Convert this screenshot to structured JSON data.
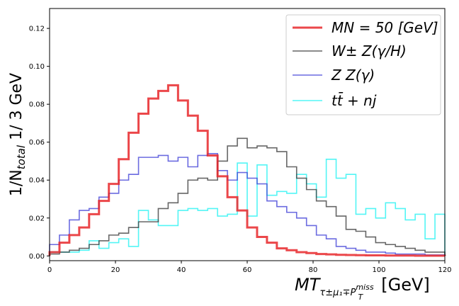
{
  "chart_data": {
    "type": "histogram-step",
    "xlabel_main": "MT",
    "xlabel_sub": "τ±μ1∓PTmiss",
    "xlabel_unit": "[GeV]",
    "ylabel": "1/Ntotal 1/ 3 GeV",
    "xlim": [
      0,
      120
    ],
    "ylim": [
      0,
      0.13
    ],
    "xticks": [
      0,
      20,
      40,
      60,
      80,
      100,
      120
    ],
    "yticks": [
      0.0,
      0.02,
      0.04,
      0.06,
      0.08,
      0.1,
      0.12
    ],
    "xtick_labels": [
      "0",
      "20",
      "40",
      "60",
      "80",
      "100",
      "120"
    ],
    "ytick_labels": [
      "0.00",
      "0.02",
      "0.04",
      "0.06",
      "0.08",
      "0.10",
      "0.12"
    ],
    "bin_edges": [
      0,
      3,
      6,
      9,
      12,
      15,
      18,
      21,
      24,
      27,
      30,
      33,
      36,
      39,
      42,
      45,
      48,
      51,
      54,
      57,
      60,
      63,
      66,
      69,
      72,
      75,
      78,
      81,
      84,
      87,
      90,
      93,
      96,
      99,
      102,
      105,
      108,
      111,
      114,
      117,
      120
    ],
    "legend_position": "upper-right",
    "series": [
      {
        "name": "M_N = 50 [GeV]",
        "legend_label": "MN = 50 [GeV]",
        "color": "#e8272a",
        "values": [
          0.002,
          0.007,
          0.011,
          0.015,
          0.022,
          0.029,
          0.038,
          0.051,
          0.065,
          0.075,
          0.083,
          0.087,
          0.09,
          0.082,
          0.074,
          0.066,
          0.053,
          0.042,
          0.031,
          0.024,
          0.015,
          0.01,
          0.007,
          0.004,
          0.003,
          0.002,
          0.0015,
          0.001,
          0.0008,
          0.0006,
          0.0005,
          0.0004,
          0.0003,
          0.0003,
          0.0002,
          0.0002,
          0.0002,
          0.0001,
          0.0001,
          0.0001
        ]
      },
      {
        "name": "W± Z(γ/H)",
        "legend_label": "W± Z(γ/H)",
        "color": "#333333",
        "values": [
          0.001,
          0.002,
          0.003,
          0.004,
          0.006,
          0.008,
          0.011,
          0.012,
          0.015,
          0.018,
          0.018,
          0.025,
          0.028,
          0.033,
          0.04,
          0.041,
          0.04,
          0.05,
          0.058,
          0.062,
          0.057,
          0.058,
          0.057,
          0.055,
          0.047,
          0.041,
          0.035,
          0.029,
          0.026,
          0.021,
          0.014,
          0.013,
          0.01,
          0.007,
          0.006,
          0.005,
          0.004,
          0.003,
          0.002,
          0.002
        ]
      },
      {
        "name": "Z Z(γ)",
        "legend_label": "Z Z(γ)",
        "color": "#3a3ad6",
        "values": [
          0.006,
          0.011,
          0.019,
          0.024,
          0.025,
          0.031,
          0.033,
          0.04,
          0.043,
          0.052,
          0.052,
          0.053,
          0.05,
          0.052,
          0.047,
          0.053,
          0.054,
          0.045,
          0.04,
          0.044,
          0.041,
          0.038,
          0.029,
          0.026,
          0.023,
          0.02,
          0.016,
          0.011,
          0.009,
          0.005,
          0.004,
          0.003,
          0.002,
          0.002,
          0.0015,
          0.001,
          0.001,
          0.001,
          0.0005,
          0.0005
        ]
      },
      {
        "name": "tt̄ + nj",
        "legend_label": "tt̄ + nj",
        "color": "#19f2f2",
        "values": [
          0.002,
          0.002,
          0.002,
          0.003,
          0.008,
          0.004,
          0.007,
          0.009,
          0.005,
          0.024,
          0.019,
          0.016,
          0.016,
          0.024,
          0.025,
          0.024,
          0.025,
          0.021,
          0.022,
          0.049,
          0.021,
          0.048,
          0.032,
          0.034,
          0.033,
          0.043,
          0.038,
          0.031,
          0.051,
          0.041,
          0.043,
          0.022,
          0.025,
          0.02,
          0.028,
          0.025,
          0.019,
          0.022,
          0.009,
          0.022
        ]
      }
    ]
  }
}
